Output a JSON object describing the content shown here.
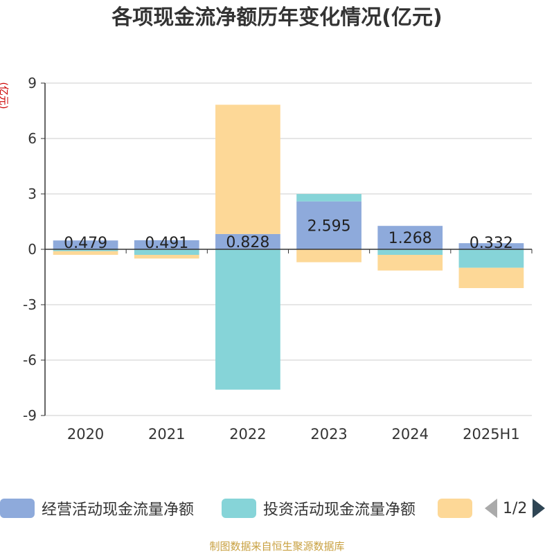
{
  "title": "各项现金流净额历年变化情况(亿元)",
  "y_axis_title": "(亿元)",
  "source": "制图数据来自恒生聚源数据库",
  "pager": {
    "text": "1/2"
  },
  "colors": {
    "operating": "#8eaadb",
    "investing": "#86d4d8",
    "financing": "#fdd897",
    "axis": "#333333",
    "grid": "#cccccc"
  },
  "chart_data": {
    "type": "bar",
    "stacked": true,
    "categories": [
      "2020",
      "2021",
      "2022",
      "2023",
      "2024",
      "2025H1"
    ],
    "ylim": [
      -9,
      9
    ],
    "yticks": [
      9,
      6,
      3,
      0,
      -3,
      -6,
      -9
    ],
    "grid": true,
    "legend_position": "bottom",
    "series": [
      {
        "name": "经营活动现金流量净额",
        "values": [
          0.479,
          0.491,
          0.828,
          2.595,
          1.268,
          0.332
        ],
        "labels": [
          "0.479",
          "0.491",
          "0.828",
          "2.595",
          "1.268",
          "0.332"
        ]
      },
      {
        "name": "投资活动现金流量净额",
        "values": [
          -0.1,
          -0.3,
          -7.6,
          0.4,
          -0.3,
          -1.0
        ]
      },
      {
        "name": "",
        "values": [
          -0.2,
          -0.2,
          7.0,
          -0.7,
          -0.85,
          -1.1
        ]
      }
    ]
  }
}
